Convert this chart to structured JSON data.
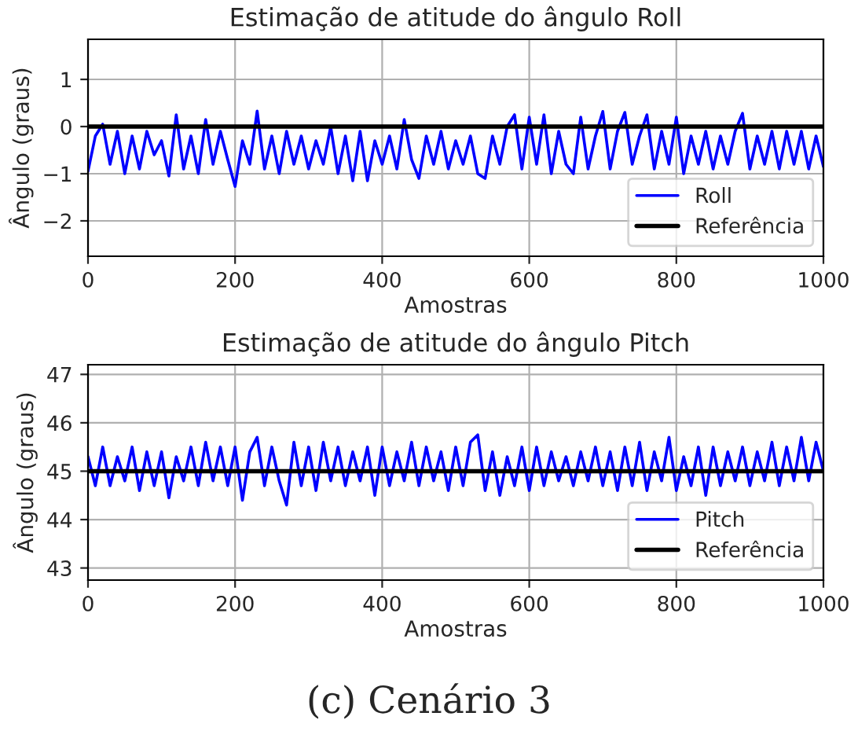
{
  "chart_data": [
    {
      "type": "line",
      "title": "Estimação de atitude do ângulo Roll",
      "xlabel": "Amostras",
      "ylabel": "Ângulo (graus)",
      "xlim": [
        0,
        1000
      ],
      "xticks": [
        0,
        200,
        400,
        600,
        800,
        1000
      ],
      "ylim": [
        -2.75,
        1.85
      ],
      "yticks": [
        -2,
        -1,
        0,
        1
      ],
      "grid": true,
      "legend": "lower right",
      "series": [
        {
          "name": "Roll",
          "color": "#0000ff",
          "x": [
            0,
            10,
            20,
            30,
            40,
            50,
            60,
            70,
            80,
            90,
            100,
            110,
            120,
            130,
            140,
            150,
            160,
            170,
            180,
            190,
            200,
            210,
            220,
            230,
            240,
            250,
            260,
            270,
            280,
            290,
            300,
            310,
            320,
            330,
            340,
            350,
            360,
            370,
            380,
            390,
            400,
            410,
            420,
            430,
            440,
            450,
            460,
            470,
            480,
            490,
            500,
            510,
            520,
            530,
            540,
            550,
            560,
            570,
            580,
            590,
            600,
            610,
            620,
            630,
            640,
            650,
            660,
            670,
            680,
            690,
            700,
            710,
            720,
            730,
            740,
            750,
            760,
            770,
            780,
            790,
            800,
            810,
            820,
            830,
            840,
            850,
            860,
            870,
            880,
            890,
            900,
            910,
            920,
            930,
            940,
            950,
            960,
            970,
            980,
            990,
            1000
          ],
          "values": [
            -0.95,
            -0.2,
            0.05,
            -0.8,
            -0.1,
            -1.0,
            -0.2,
            -0.9,
            -0.1,
            -0.6,
            -0.3,
            -1.05,
            0.25,
            -0.9,
            -0.2,
            -1.0,
            0.15,
            -0.8,
            -0.1,
            -0.7,
            -1.27,
            -0.3,
            -0.8,
            0.33,
            -0.9,
            -0.2,
            -1.0,
            -0.1,
            -0.8,
            -0.2,
            -0.9,
            -0.3,
            -0.8,
            0.0,
            -1.0,
            -0.2,
            -1.15,
            -0.1,
            -1.15,
            -0.3,
            -0.8,
            -0.2,
            -0.9,
            0.15,
            -0.7,
            -1.1,
            -0.2,
            -0.8,
            -0.1,
            -0.9,
            -0.3,
            -0.8,
            -0.2,
            -1.0,
            -1.1,
            -0.2,
            -0.8,
            0.0,
            0.25,
            -0.9,
            0.2,
            -0.8,
            0.25,
            -1.0,
            -0.1,
            -0.8,
            -1.0,
            0.2,
            -0.9,
            -0.2,
            0.32,
            -0.9,
            -0.1,
            0.3,
            -0.8,
            -0.2,
            0.25,
            -0.9,
            -0.1,
            -0.8,
            0.2,
            -1.0,
            -0.2,
            -0.8,
            -0.1,
            -0.9,
            -0.2,
            -0.8,
            -0.1,
            0.28,
            -0.9,
            -0.2,
            -0.8,
            -0.1,
            -0.9,
            -0.1,
            -0.8,
            -0.1,
            -0.9,
            -0.2,
            -0.85
          ]
        },
        {
          "name": "Referência",
          "color": "#000000",
          "x": [
            0,
            1000
          ],
          "values": [
            0,
            0
          ]
        }
      ]
    },
    {
      "type": "line",
      "title": "Estimação de atitude do ângulo Pitch",
      "xlabel": "Amostras",
      "ylabel": "Ângulo (graus)",
      "xlim": [
        0,
        1000
      ],
      "xticks": [
        0,
        200,
        400,
        600,
        800,
        1000
      ],
      "ylim": [
        42.75,
        47.2
      ],
      "yticks": [
        43,
        44,
        45,
        46,
        47
      ],
      "grid": true,
      "legend": "lower right",
      "annotations": [
        "(c) Cenário 3"
      ],
      "series": [
        {
          "name": "Pitch",
          "color": "#0000ff",
          "x": [
            0,
            10,
            20,
            30,
            40,
            50,
            60,
            70,
            80,
            90,
            100,
            110,
            120,
            130,
            140,
            150,
            160,
            170,
            180,
            190,
            200,
            210,
            220,
            230,
            240,
            250,
            260,
            270,
            280,
            290,
            300,
            310,
            320,
            330,
            340,
            350,
            360,
            370,
            380,
            390,
            400,
            410,
            420,
            430,
            440,
            450,
            460,
            470,
            480,
            490,
            500,
            510,
            520,
            530,
            540,
            550,
            560,
            570,
            580,
            590,
            600,
            610,
            620,
            630,
            640,
            650,
            660,
            670,
            680,
            690,
            700,
            710,
            720,
            730,
            740,
            750,
            760,
            770,
            780,
            790,
            800,
            810,
            820,
            830,
            840,
            850,
            860,
            870,
            880,
            890,
            900,
            910,
            920,
            930,
            940,
            950,
            960,
            970,
            980,
            990,
            1000
          ],
          "values": [
            45.3,
            44.7,
            45.5,
            44.7,
            45.3,
            44.8,
            45.5,
            44.6,
            45.4,
            44.7,
            45.4,
            44.45,
            45.3,
            44.8,
            45.5,
            44.7,
            45.6,
            44.8,
            45.5,
            44.7,
            45.5,
            44.4,
            45.4,
            45.7,
            44.7,
            45.5,
            44.8,
            44.3,
            45.6,
            44.7,
            45.5,
            44.6,
            45.6,
            44.8,
            45.5,
            44.7,
            45.4,
            44.8,
            45.5,
            44.5,
            45.5,
            44.7,
            45.4,
            44.8,
            45.6,
            44.7,
            45.5,
            44.8,
            45.4,
            44.6,
            45.5,
            44.7,
            45.6,
            45.75,
            44.6,
            45.4,
            44.5,
            45.3,
            44.7,
            45.5,
            44.6,
            45.5,
            44.7,
            45.4,
            44.8,
            45.3,
            44.7,
            45.4,
            44.8,
            45.5,
            44.7,
            45.4,
            44.6,
            45.5,
            44.7,
            45.6,
            44.6,
            45.4,
            44.8,
            45.7,
            44.6,
            45.3,
            44.7,
            45.5,
            44.5,
            45.5,
            44.7,
            45.4,
            44.8,
            45.5,
            44.7,
            45.4,
            44.8,
            45.6,
            44.7,
            45.5,
            44.8,
            45.7,
            44.8,
            45.6,
            45.0
          ]
        },
        {
          "name": "Referência",
          "color": "#000000",
          "x": [
            0,
            1000
          ],
          "values": [
            45,
            45
          ]
        }
      ]
    }
  ]
}
